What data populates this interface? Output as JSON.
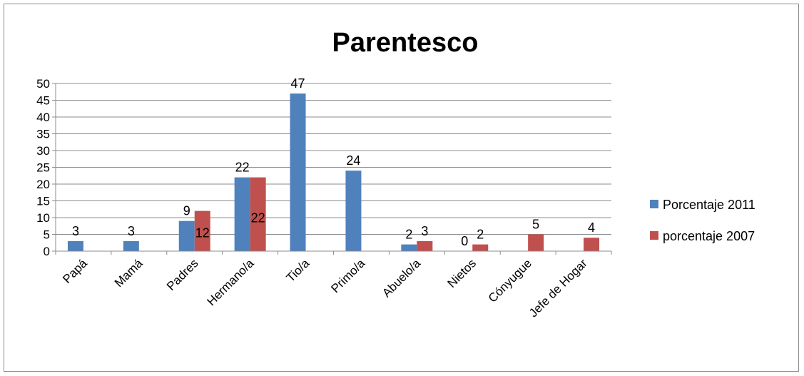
{
  "chart_data": {
    "type": "bar",
    "title": "Parentesco",
    "categories": [
      "Papá",
      "Mamá",
      "Padres",
      "Hermano/a",
      "Tio/a",
      "Primo/a",
      "Abuelo/a",
      "Nietos",
      "Cónyugue",
      "Jefe de Hogar"
    ],
    "series": [
      {
        "name": "Porcentaje 2011",
        "color": "#4f81bd",
        "values": [
          3,
          3,
          9,
          22,
          47,
          24,
          2,
          0,
          null,
          null
        ],
        "labels": [
          "3",
          "3",
          "9",
          "22",
          "47",
          "24",
          "2",
          "0",
          "",
          ""
        ]
      },
      {
        "name": "porcentaje 2007",
        "color": "#c0504d",
        "values": [
          null,
          null,
          12,
          22,
          null,
          null,
          3,
          2,
          5,
          4
        ],
        "labels": [
          "",
          "",
          "12",
          "22",
          "",
          "",
          "3",
          "2",
          "5",
          "4"
        ]
      }
    ],
    "ylim": [
      0,
      50
    ],
    "yticks": [
      0,
      5,
      10,
      15,
      20,
      25,
      30,
      35,
      40,
      45,
      50
    ],
    "grid": true,
    "legend": "right"
  }
}
